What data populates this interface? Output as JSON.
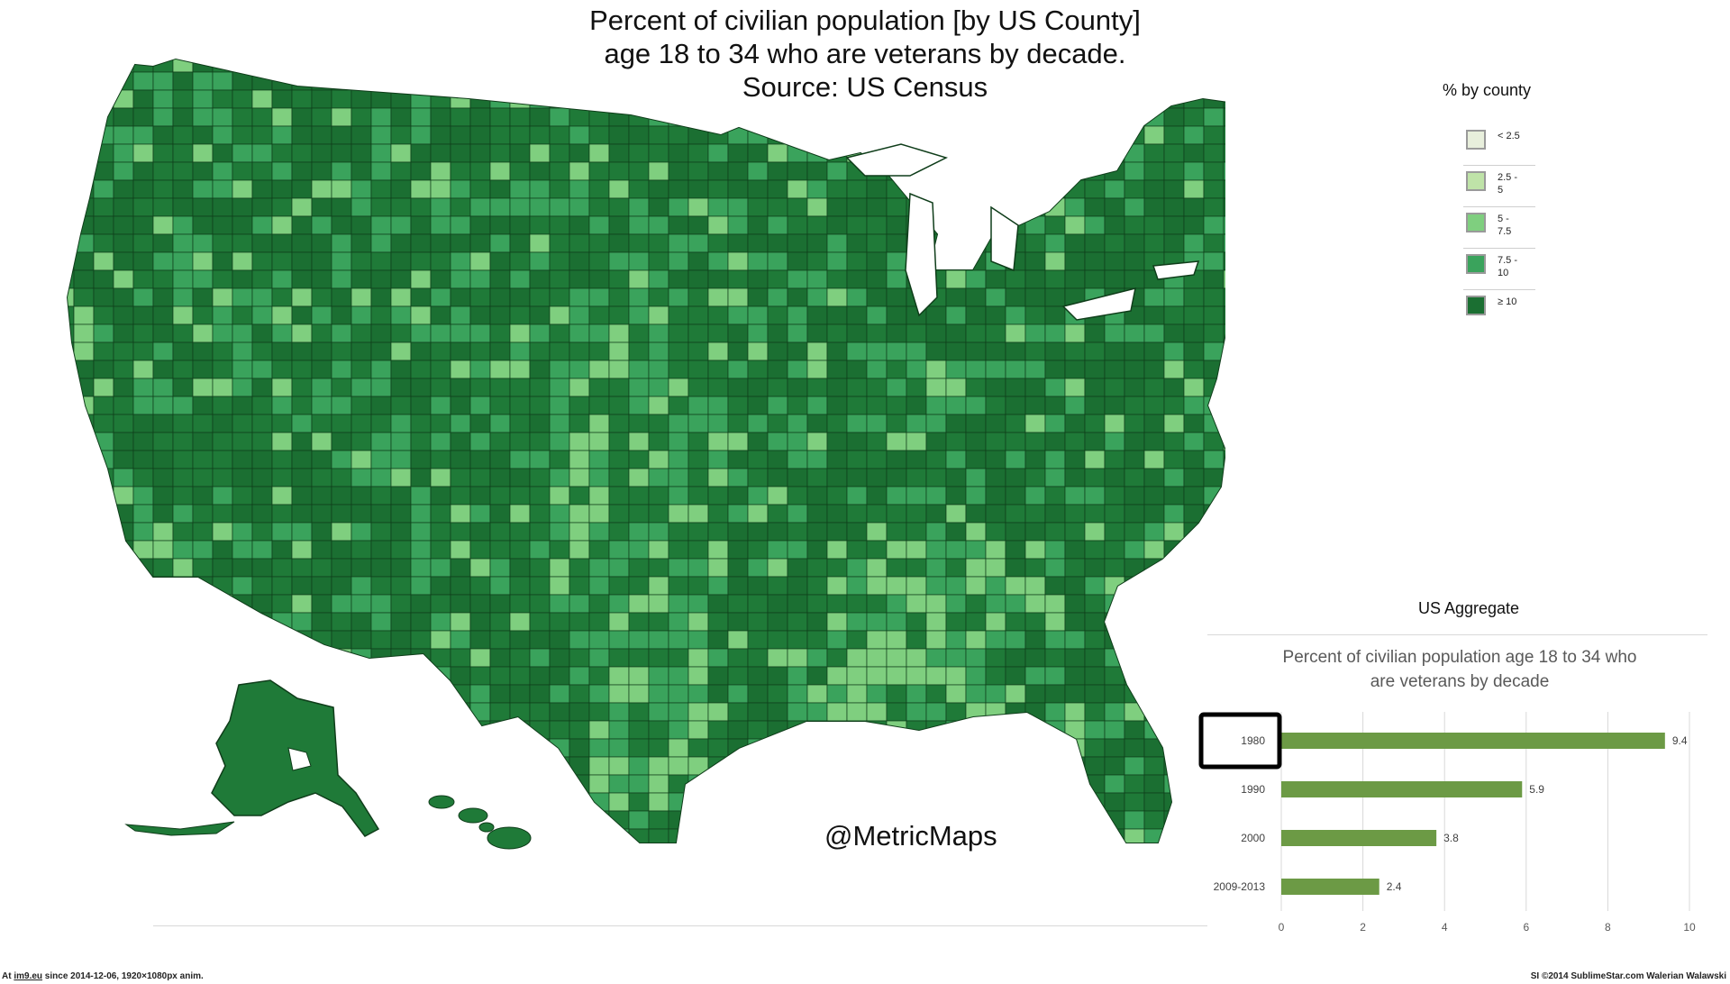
{
  "title": {
    "line1": "Percent of civilian population [by US County]",
    "line2": "age 18 to 34 who are veterans by decade.",
    "line3": "Source: US Census"
  },
  "legend": {
    "title": "% by county",
    "items": [
      {
        "label": "< 2.5",
        "color": "#e8efdc"
      },
      {
        "label": "2.5 -\n5",
        "color": "#bfe3a8"
      },
      {
        "label": "5 -\n7.5",
        "color": "#7fcf7f"
      },
      {
        "label": "7.5 -\n10",
        "color": "#3aa35c"
      },
      {
        "label": "≥ 10",
        "color": "#1b6f32"
      }
    ]
  },
  "watermark": "@MetricMaps",
  "aggregate_heading": "US Aggregate",
  "chart_data": {
    "type": "bar",
    "orientation": "horizontal",
    "title": "Percent of civilian population age 18 to 34 who are veterans by decade",
    "categories": [
      "1980",
      "1990",
      "2000",
      "2009-2013"
    ],
    "values": [
      9.4,
      5.9,
      3.8,
      2.4
    ],
    "xlim": [
      0,
      10
    ],
    "xticks": [
      0,
      2,
      4,
      6,
      8,
      10
    ],
    "grid": true,
    "highlighted_category": "1980",
    "bar_color": "#6c9a45"
  },
  "map_colors": {
    "ocean_bg": "#ffffff",
    "dominant": "#1f7a38",
    "mid": "#3aa35c",
    "light": "#7fcf7f",
    "border": "#0f3d1a"
  },
  "footer": {
    "left_prefix": "At ",
    "left_link": "im9.eu",
    "left_suffix": " since 2014-12-06, 1920×1080px anim.",
    "right": "SI ©2014 SublimeStar.com Walerian Walawski"
  }
}
